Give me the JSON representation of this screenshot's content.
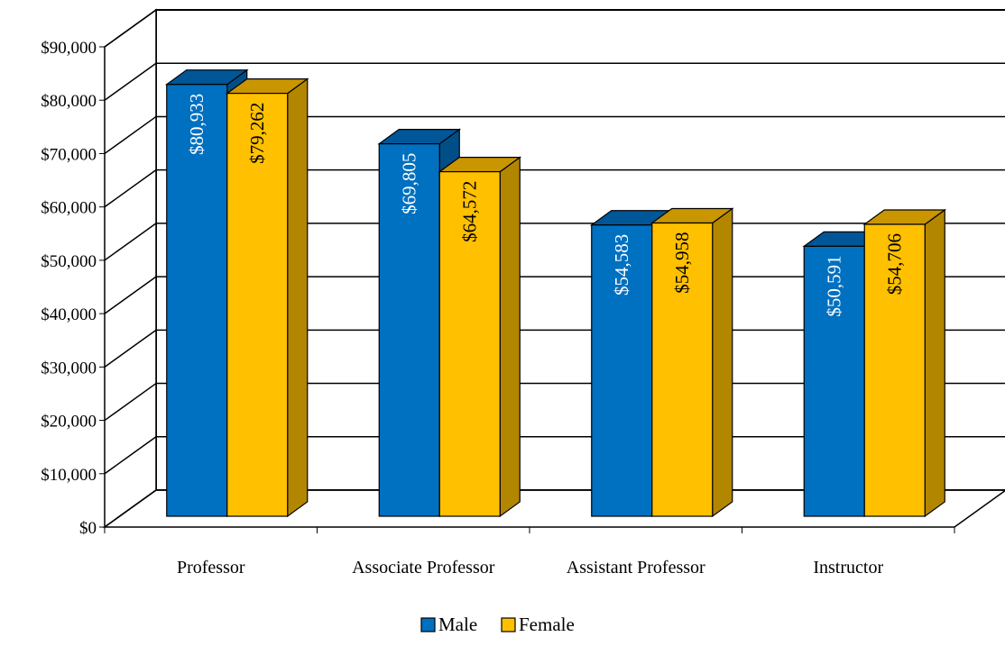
{
  "chart_data": {
    "type": "bar",
    "style": "3d-clustered-column",
    "categories": [
      "Professor",
      "Associate Professor",
      "Assistant Professor",
      "Instructor"
    ],
    "series": [
      {
        "name": "Male",
        "values": [
          80933,
          69805,
          54583,
          50591
        ],
        "labels": [
          "$80,933",
          "$69,805",
          "$54,583",
          "$50,591"
        ]
      },
      {
        "name": "Female",
        "values": [
          79262,
          64572,
          54958,
          54706
        ],
        "labels": [
          "$79,262",
          "$64,572",
          "$54,958",
          "$54,706"
        ]
      }
    ],
    "ylim": [
      0,
      90000
    ],
    "yticks": [
      0,
      10000,
      20000,
      30000,
      40000,
      50000,
      60000,
      70000,
      80000,
      90000
    ],
    "ytick_labels": [
      "$0",
      "$10,000",
      "$20,000",
      "$30,000",
      "$40,000",
      "$50,000",
      "$60,000",
      "$70,000",
      "$80,000",
      "$90,000"
    ],
    "title": "",
    "xlabel": "",
    "ylabel": "",
    "grid": true,
    "legend_position": "bottom",
    "colors": {
      "Male": {
        "front": "#0070C0",
        "top": "#005696",
        "side": "#004E87",
        "label": "#ffffff"
      },
      "Female": {
        "front": "#FFC000",
        "top": "#C99600",
        "side": "#B38600",
        "label": "#000000"
      }
    }
  }
}
